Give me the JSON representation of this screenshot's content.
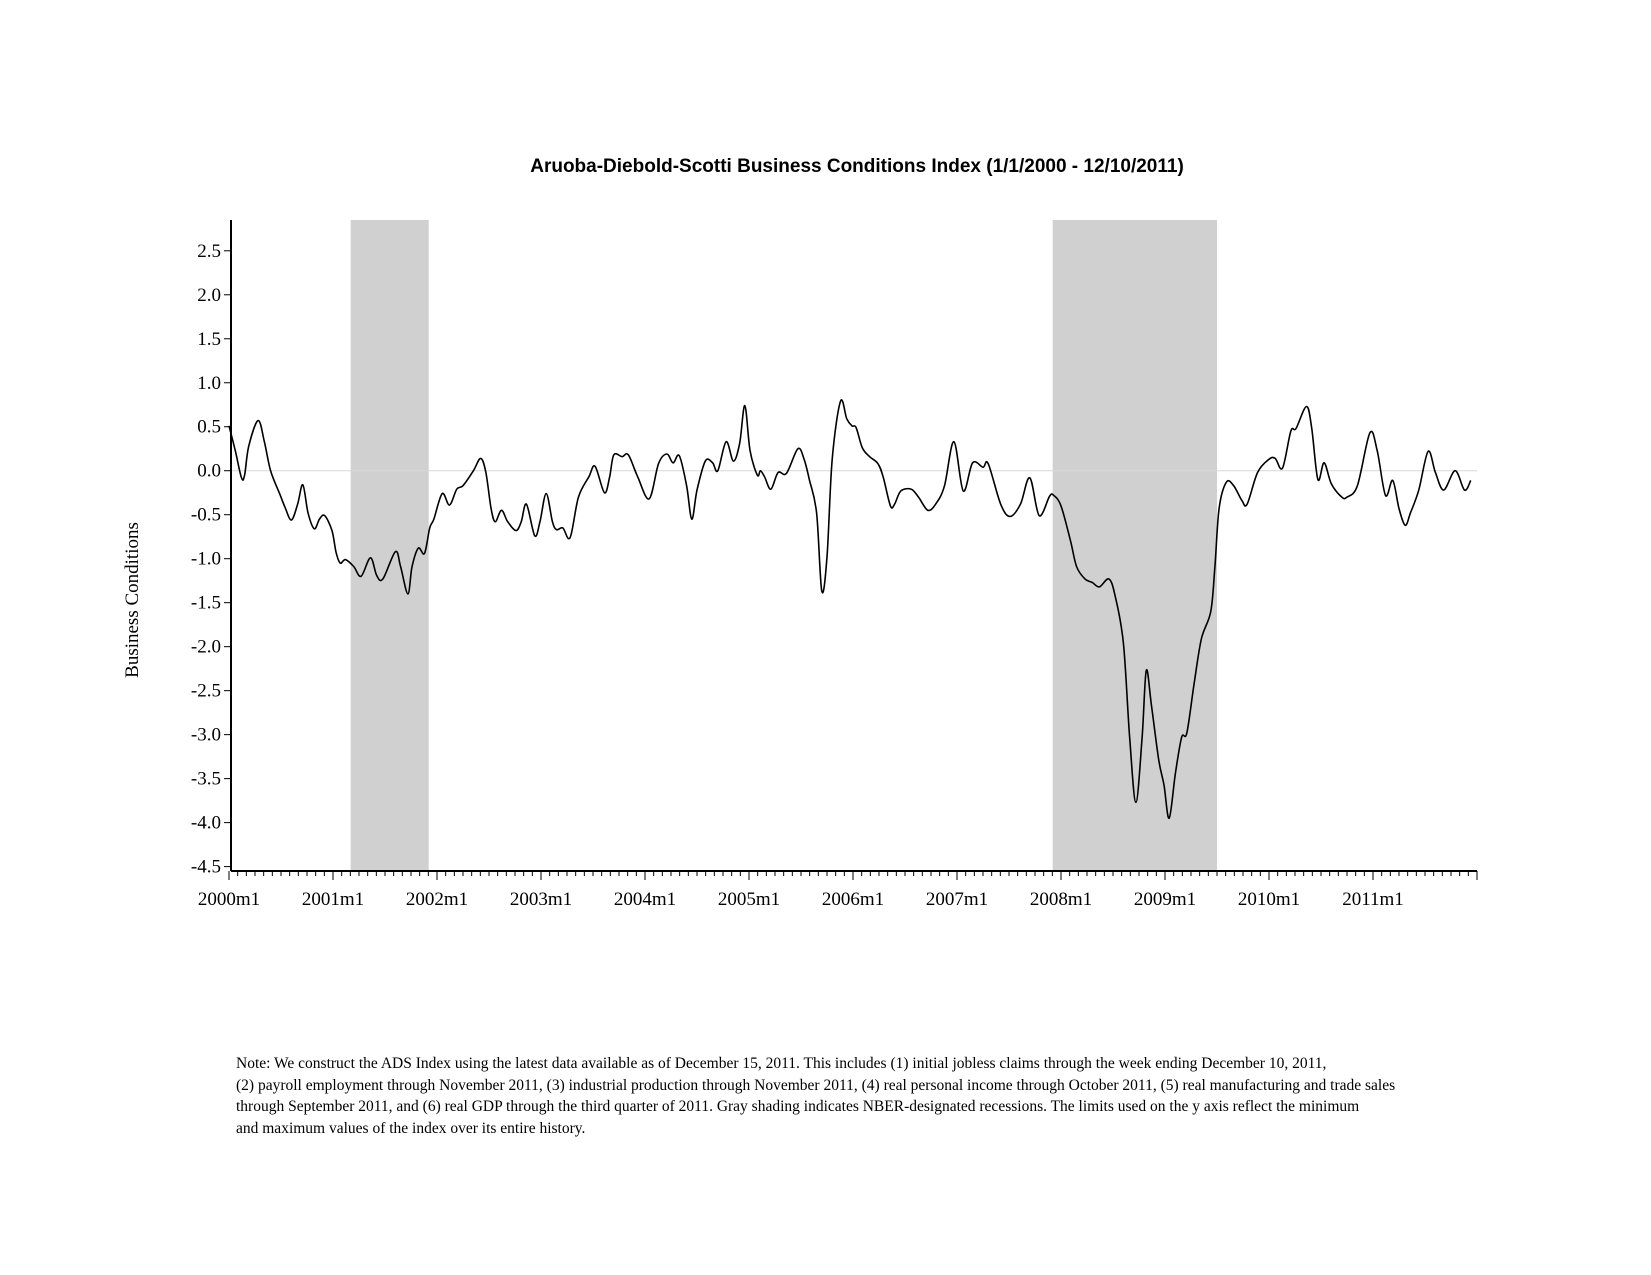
{
  "chart_data": {
    "type": "line",
    "title": "Aruoba-Diebold-Scotti Business Conditions Index (1/1/2000 - 12/10/2011)",
    "xlabel": "",
    "ylabel": "Business Conditions",
    "xlim": [
      2000.0,
      2012.0
    ],
    "ylim": [
      -4.55,
      2.85
    ],
    "grid": false,
    "reference_line": 0,
    "x_ticks": [
      {
        "value": 2000,
        "label": "2000m1"
      },
      {
        "value": 2001,
        "label": "2001m1"
      },
      {
        "value": 2002,
        "label": "2002m1"
      },
      {
        "value": 2003,
        "label": "2003m1"
      },
      {
        "value": 2004,
        "label": "2004m1"
      },
      {
        "value": 2005,
        "label": "2005m1"
      },
      {
        "value": 2006,
        "label": "2006m1"
      },
      {
        "value": 2007,
        "label": "2007m1"
      },
      {
        "value": 2008,
        "label": "2008m1"
      },
      {
        "value": 2009,
        "label": "2009m1"
      },
      {
        "value": 2010,
        "label": "2010m1"
      },
      {
        "value": 2011,
        "label": "2011m1"
      }
    ],
    "y_ticks": [
      {
        "value": 2.5,
        "label": "2.5"
      },
      {
        "value": 2.0,
        "label": "2.0"
      },
      {
        "value": 1.5,
        "label": "1.5"
      },
      {
        "value": 1.0,
        "label": "1.0"
      },
      {
        "value": 0.5,
        "label": "0.5"
      },
      {
        "value": 0.0,
        "label": "0.0"
      },
      {
        "value": -0.5,
        "label": "-0.5"
      },
      {
        "value": -1.0,
        "label": "-1.0"
      },
      {
        "value": -1.5,
        "label": "-1.5"
      },
      {
        "value": -2.0,
        "label": "-2.0"
      },
      {
        "value": -2.5,
        "label": "-2.5"
      },
      {
        "value": -3.0,
        "label": "-3.0"
      },
      {
        "value": -3.5,
        "label": "-3.5"
      },
      {
        "value": -4.0,
        "label": "-4.0"
      },
      {
        "value": -4.5,
        "label": "-4.5"
      }
    ],
    "recessions": [
      {
        "start": 2001.17,
        "end": 2001.92
      },
      {
        "start": 2007.92,
        "end": 2009.5
      }
    ],
    "colors": {
      "line": "#000000",
      "recession": "#d0d0d0",
      "zero_line": "#d8d8d8"
    },
    "series": [
      {
        "name": "ADS Index",
        "x": [
          2000.0,
          2000.06,
          2000.12,
          2000.15,
          2000.19,
          2000.28,
          2000.34,
          2000.4,
          2000.49,
          2000.54,
          2000.6,
          2000.66,
          2000.71,
          2000.76,
          2000.82,
          2000.87,
          2000.92,
          2000.99,
          2001.03,
          2001.07,
          2001.12,
          2001.2,
          2001.27,
          2001.36,
          2001.42,
          2001.48,
          2001.6,
          2001.65,
          2001.72,
          2001.76,
          2001.82,
          2001.88,
          2001.93,
          2001.97,
          2002.05,
          2002.12,
          2002.19,
          2002.25,
          2002.35,
          2002.42,
          2002.47,
          2002.52,
          2002.56,
          2002.62,
          2002.68,
          2002.76,
          2002.81,
          2002.86,
          2002.94,
          2002.99,
          2003.05,
          2003.11,
          2003.15,
          2003.21,
          2003.28,
          2003.36,
          2003.46,
          2003.52,
          2003.61,
          2003.66,
          2003.7,
          2003.78,
          2003.84,
          2003.93,
          2004.04,
          2004.13,
          2004.21,
          2004.27,
          2004.33,
          2004.4,
          2004.45,
          2004.5,
          2004.58,
          2004.65,
          2004.7,
          2004.78,
          2004.85,
          2004.91,
          2004.96,
          2005.01,
          2005.08,
          2005.11,
          2005.15,
          2005.21,
          2005.28,
          2005.36,
          2005.47,
          2005.53,
          2005.58,
          2005.65,
          2005.7,
          2005.75,
          2005.8,
          2005.88,
          2005.94,
          2005.99,
          2006.03,
          2006.09,
          2006.16,
          2006.24,
          2006.29,
          2006.36,
          2006.4,
          2006.46,
          2006.56,
          2006.63,
          2006.72,
          2006.8,
          2006.88,
          2006.97,
          2007.06,
          2007.15,
          2007.25,
          2007.3,
          2007.42,
          2007.51,
          2007.61,
          2007.7,
          2007.79,
          2007.89,
          2007.93,
          2008.0,
          2008.09,
          2008.15,
          2008.23,
          2008.3,
          2008.37,
          2008.46,
          2008.52,
          2008.6,
          2008.66,
          2008.72,
          2008.78,
          2008.82,
          2008.87,
          2008.94,
          2008.99,
          2009.04,
          2009.1,
          2009.16,
          2009.21,
          2009.28,
          2009.35,
          2009.44,
          2009.48,
          2009.52,
          2009.59,
          2009.66,
          2009.74,
          2009.79,
          2009.89,
          2010.0,
          2010.06,
          2010.13,
          2010.21,
          2010.26,
          2010.36,
          2010.41,
          2010.47,
          2010.53,
          2010.6,
          2010.7,
          2010.75,
          2010.85,
          2010.97,
          2011.04,
          2011.12,
          2011.19,
          2011.25,
          2011.31,
          2011.36,
          2011.44,
          2011.53,
          2011.6,
          2011.68,
          2011.79,
          2011.88,
          2011.94
        ],
        "values": [
          0.51,
          0.23,
          -0.08,
          -0.05,
          0.28,
          0.57,
          0.33,
          0.0,
          -0.27,
          -0.42,
          -0.56,
          -0.38,
          -0.16,
          -0.48,
          -0.66,
          -0.55,
          -0.51,
          -0.68,
          -0.93,
          -1.05,
          -1.01,
          -1.09,
          -1.2,
          -0.99,
          -1.19,
          -1.23,
          -0.92,
          -1.09,
          -1.4,
          -1.09,
          -0.88,
          -0.94,
          -0.65,
          -0.55,
          -0.26,
          -0.39,
          -0.21,
          -0.17,
          0.0,
          0.14,
          -0.02,
          -0.43,
          -0.58,
          -0.45,
          -0.58,
          -0.68,
          -0.58,
          -0.38,
          -0.74,
          -0.58,
          -0.26,
          -0.58,
          -0.67,
          -0.65,
          -0.76,
          -0.3,
          -0.07,
          0.05,
          -0.25,
          -0.07,
          0.18,
          0.16,
          0.18,
          -0.07,
          -0.32,
          0.08,
          0.19,
          0.09,
          0.17,
          -0.17,
          -0.55,
          -0.22,
          0.11,
          0.09,
          0.0,
          0.33,
          0.11,
          0.31,
          0.74,
          0.23,
          -0.05,
          0.0,
          -0.07,
          -0.21,
          -0.02,
          -0.03,
          0.25,
          0.13,
          -0.1,
          -0.48,
          -1.37,
          -0.98,
          0.13,
          0.79,
          0.59,
          0.51,
          0.49,
          0.26,
          0.16,
          0.08,
          -0.07,
          -0.4,
          -0.38,
          -0.23,
          -0.21,
          -0.3,
          -0.45,
          -0.37,
          -0.17,
          0.33,
          -0.23,
          0.09,
          0.04,
          0.08,
          -0.38,
          -0.52,
          -0.38,
          -0.08,
          -0.51,
          -0.29,
          -0.28,
          -0.4,
          -0.79,
          -1.09,
          -1.23,
          -1.27,
          -1.32,
          -1.23,
          -1.42,
          -1.96,
          -3.03,
          -3.77,
          -3.03,
          -2.27,
          -2.67,
          -3.29,
          -3.57,
          -3.95,
          -3.44,
          -3.03,
          -2.98,
          -2.42,
          -1.91,
          -1.6,
          -1.09,
          -0.43,
          -0.13,
          -0.17,
          -0.34,
          -0.38,
          -0.02,
          0.13,
          0.14,
          0.03,
          0.45,
          0.48,
          0.73,
          0.49,
          -0.1,
          0.09,
          -0.15,
          -0.3,
          -0.3,
          -0.17,
          0.43,
          0.23,
          -0.28,
          -0.11,
          -0.43,
          -0.62,
          -0.48,
          -0.22,
          0.22,
          -0.02,
          -0.22,
          0.0,
          -0.22,
          -0.11
        ]
      }
    ]
  },
  "note_lines": [
    "Note: We construct the ADS Index using the latest data available as of December 15, 2011. This includes (1) initial jobless claims through the week ending December 10, 2011,",
    " (2) payroll employment through November 2011, (3) industrial production through November 2011, (4) real personal income through October 2011, (5) real manufacturing and trade sales",
    " through September 2011, and (6) real GDP through the third quarter of 2011. Gray shading indicates NBER-designated recessions. The limits used on the y axis reflect the minimum",
    " and maximum values of the index over its entire history."
  ]
}
